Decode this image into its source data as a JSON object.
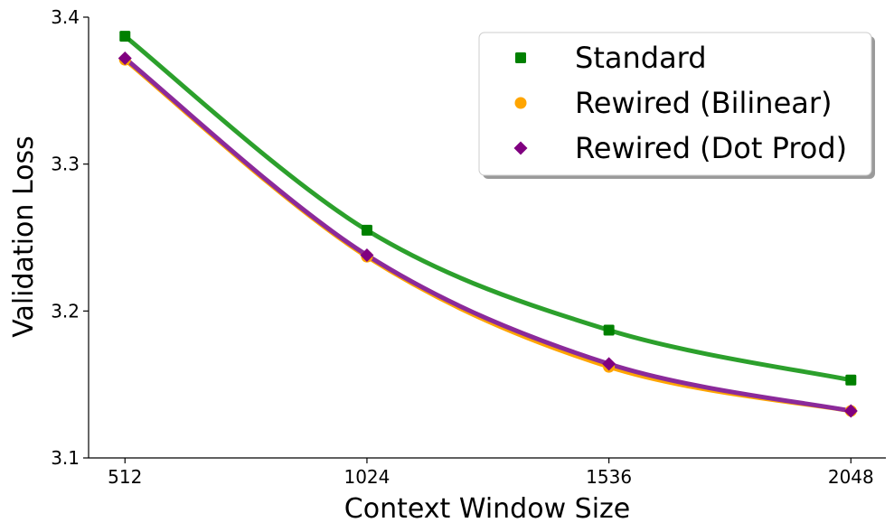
{
  "chart_data": {
    "type": "scatter",
    "title": "",
    "xlabel": "Context Window Size",
    "ylabel": "Validation Loss",
    "x_ticks": [
      512,
      1024,
      1536,
      2048
    ],
    "x_tick_labels": [
      "512",
      "1024",
      "1536",
      "2048"
    ],
    "y_ticks": [
      3.1,
      3.2,
      3.3,
      3.4
    ],
    "y_tick_labels": [
      "3.1",
      "3.2",
      "3.3",
      "3.4"
    ],
    "xlim": [
      435,
      2122
    ],
    "ylim": [
      3.1,
      3.4
    ],
    "grid": false,
    "legend_position": "top-right",
    "series": [
      {
        "name": "Standard",
        "marker": "square",
        "marker_color": "#008000",
        "line_color": "#2ca02c",
        "x": [
          512,
          1024,
          1536,
          2048
        ],
        "y": [
          3.387,
          3.255,
          3.187,
          3.153
        ]
      },
      {
        "name": "Rewired (Bilinear)",
        "marker": "circle",
        "marker_color": "#ffa500",
        "line_color": "#ffa500",
        "x": [
          512,
          1024,
          1536,
          2048
        ],
        "y": [
          3.371,
          3.237,
          3.162,
          3.132
        ]
      },
      {
        "name": "Rewired (Dot Prod)",
        "marker": "diamond",
        "marker_color": "#800080",
        "line_color": "#8b2a9a",
        "x": [
          512,
          1024,
          1536,
          2048
        ],
        "y": [
          3.372,
          3.238,
          3.164,
          3.132
        ]
      }
    ]
  }
}
